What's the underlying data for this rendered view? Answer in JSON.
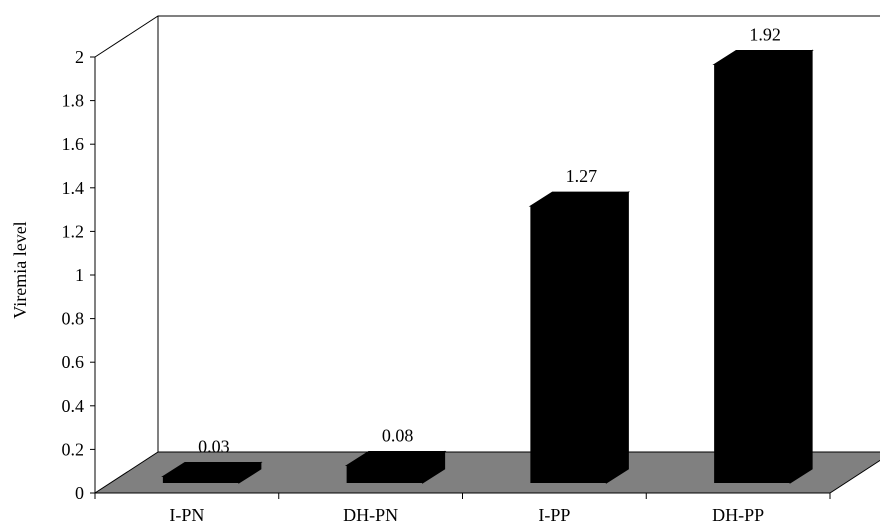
{
  "chart_data": {
    "type": "bar",
    "style": "3d",
    "categories": [
      "I-PN",
      "DH-PN",
      "I-PP",
      "DH-PP"
    ],
    "values": [
      0.03,
      0.08,
      1.27,
      1.92
    ],
    "value_labels": [
      "0.03",
      "0.08",
      "1.27",
      "1.92"
    ],
    "title": "",
    "xlabel": "",
    "ylabel": "Viremia level",
    "ylim": [
      0,
      2
    ],
    "yticks": [
      "0",
      "0.2",
      "0.4",
      "0.6",
      "0.8",
      "1",
      "1.2",
      "1.4",
      "1.6",
      "1.8",
      "2"
    ],
    "grid": false,
    "legend": "none",
    "colors": {
      "bar": "#000000",
      "floor": "#808080",
      "wall": "#ffffff",
      "line": "#000000"
    }
  }
}
